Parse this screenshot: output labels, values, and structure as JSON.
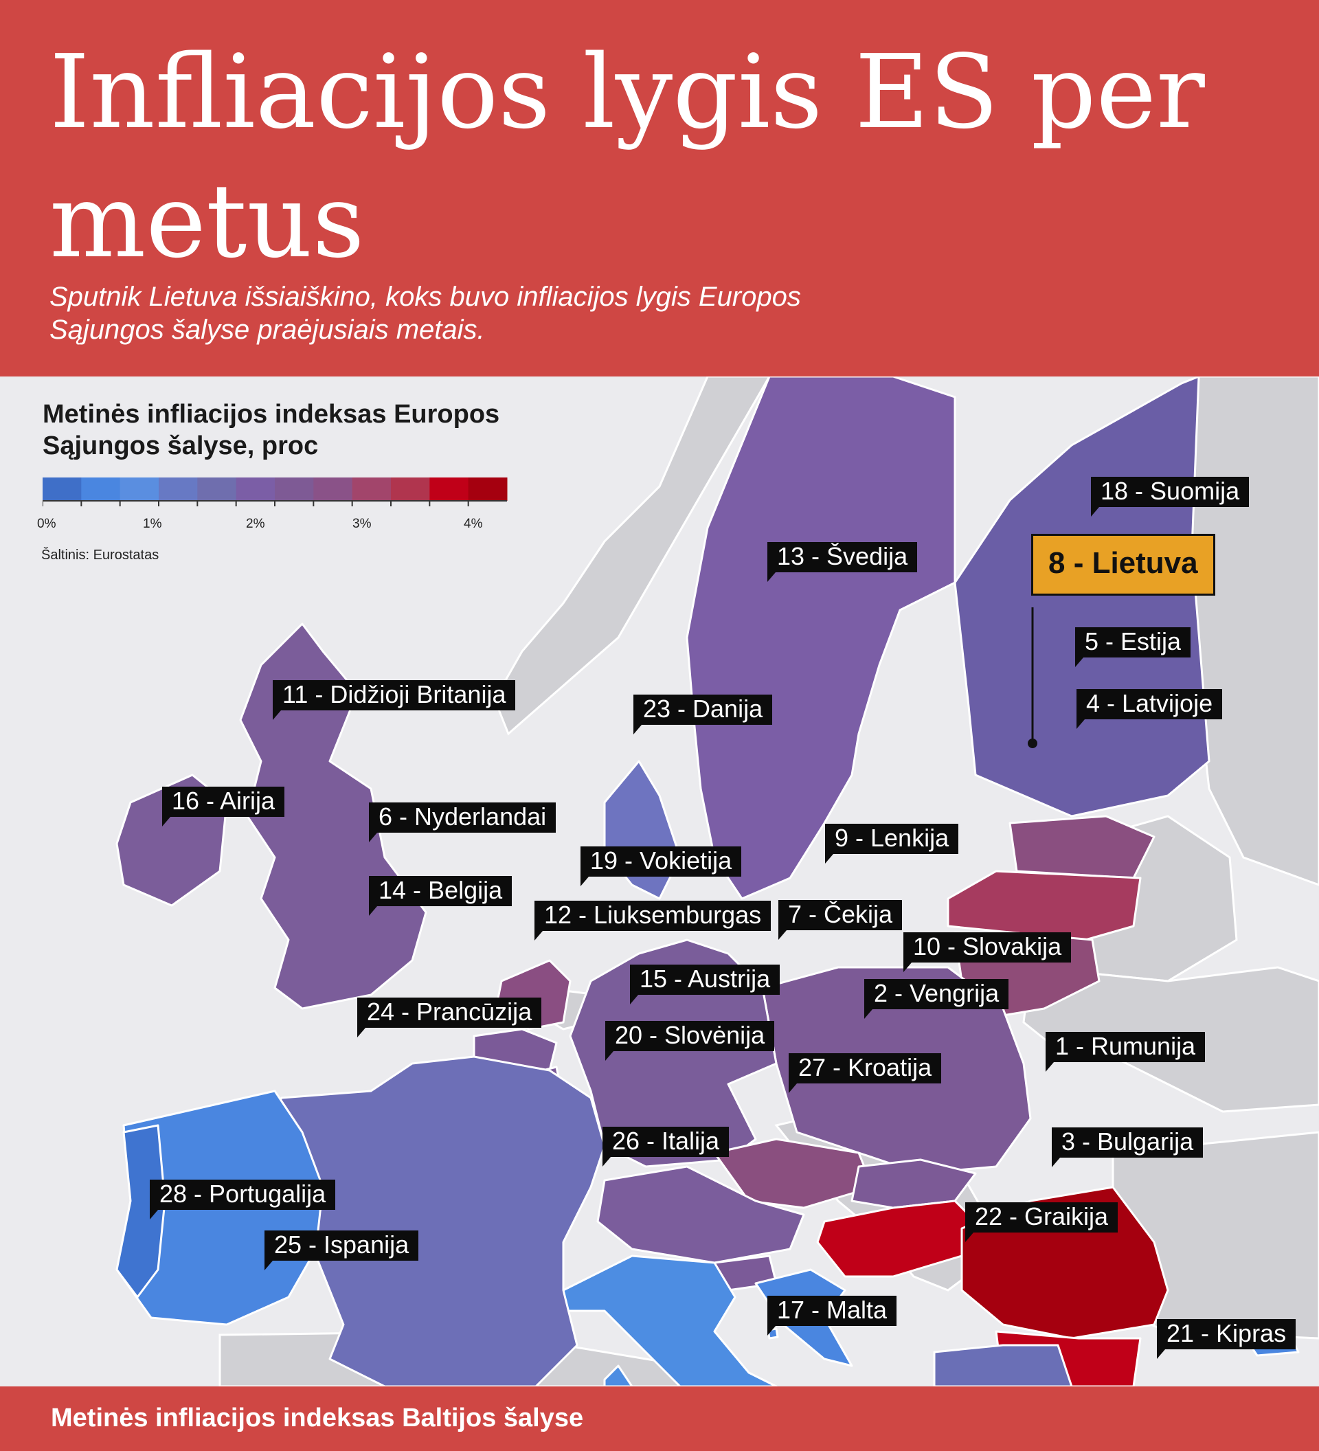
{
  "header": {
    "title": "Infliacijos lygis ES per metus",
    "subtitle": "Sputnik Lietuva išsiaiškino, koks buvo infliacijos lygis Europos Sąjungos šalyse praėjusiais metais."
  },
  "legend": {
    "title": "Metinės infliacijos indeksas Europos Sąjungos šalyse, proc",
    "ticks": [
      "0%",
      "1%",
      "2%",
      "3%",
      "4%"
    ],
    "colors": [
      "#3f6fc8",
      "#4a86e0",
      "#5a8ee0",
      "#6779c4",
      "#6f6eae",
      "#7b5ea6",
      "#7e5a95",
      "#8a5288",
      "#a2456b",
      "#b0354e",
      "#c00018",
      "#a5000f"
    ],
    "source": "Šaltinis: Eurostatas"
  },
  "colors": {
    "header_bg": "#cf4744",
    "sea": "#ebebee",
    "non_eu": "#d0d0d4",
    "label_bg": "#0c0c0c",
    "highlight": "#e8a125"
  },
  "map": {
    "labels": [
      {
        "text": "1 - Rumunija",
        "rank": 1
      },
      {
        "text": "2 - Vengrija",
        "rank": 2
      },
      {
        "text": "3 - Bulgarija",
        "rank": 3
      },
      {
        "text": "4 - Latvijoje",
        "rank": 4
      },
      {
        "text": "5 - Estija",
        "rank": 5
      },
      {
        "text": "6 - Nyderlandai",
        "rank": 6
      },
      {
        "text": "7 - Čekija",
        "rank": 7
      },
      {
        "text": "8 - Lietuva",
        "rank": 8
      },
      {
        "text": "9 - Lenkija",
        "rank": 9
      },
      {
        "text": "10 - Slovakija",
        "rank": 10
      },
      {
        "text": "11 - Didžioji Britanija",
        "rank": 11
      },
      {
        "text": "12 - Liuksemburgas",
        "rank": 12
      },
      {
        "text": "13 - Švedija",
        "rank": 13
      },
      {
        "text": "14 - Belgija",
        "rank": 14
      },
      {
        "text": "15 - Austrija",
        "rank": 15
      },
      {
        "text": "16 - Airija",
        "rank": 16
      },
      {
        "text": "17 - Malta",
        "rank": 17
      },
      {
        "text": "18 - Suomija",
        "rank": 18
      },
      {
        "text": "19 - Vokietija",
        "rank": 19
      },
      {
        "text": "20 - Slovėnija",
        "rank": 20
      },
      {
        "text": "21 - Kipras",
        "rank": 21
      },
      {
        "text": "22 - Graikija",
        "rank": 22
      },
      {
        "text": "23 - Danija",
        "rank": 23
      },
      {
        "text": "24 - Prancūzija",
        "rank": 24
      },
      {
        "text": "25 - Ispanija",
        "rank": 25
      },
      {
        "text": "26 - Italija",
        "rank": 26
      },
      {
        "text": "27 - Kroatija",
        "rank": 27
      },
      {
        "text": "28 - Portugalija",
        "rank": 28
      }
    ]
  },
  "footer": {
    "text": "Metinės infliacijos indeksas Baltijos šalyse"
  }
}
